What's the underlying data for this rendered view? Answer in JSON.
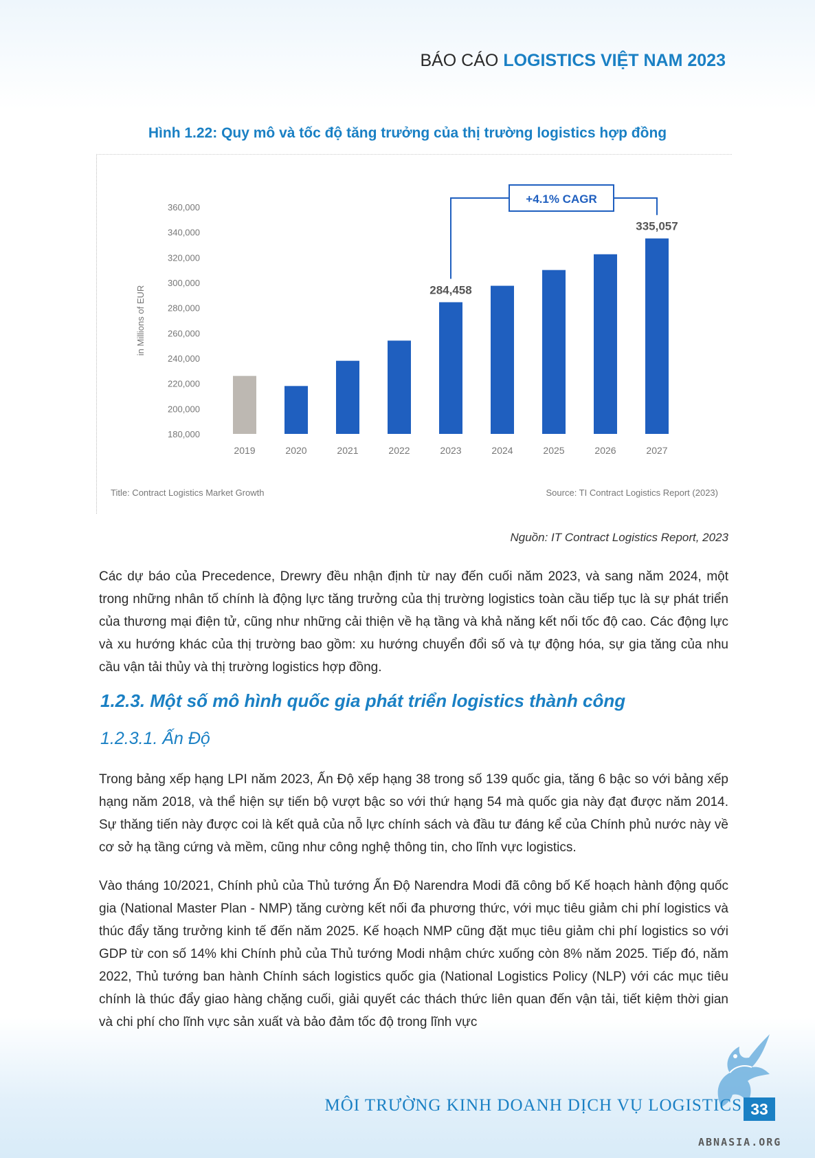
{
  "header": {
    "prefix": "BÁO CÁO",
    "title": "LOGISTICS VIỆT NAM 2023"
  },
  "figure": {
    "caption": "Hình 1.22: Quy mô và tốc độ tăng trưởng của thị trường logistics hợp đồng",
    "source_note": "Nguồn: IT Contract Logistics Report, 2023"
  },
  "chart_data": {
    "type": "bar",
    "categories": [
      "2019",
      "2020",
      "2021",
      "2022",
      "2023",
      "2024",
      "2025",
      "2026",
      "2027"
    ],
    "values": [
      226000,
      218000,
      238000,
      254000,
      284458,
      297500,
      310000,
      322500,
      335057
    ],
    "bar_colors": [
      "#bdb8b2",
      "#1f5fbf",
      "#1f5fbf",
      "#1f5fbf",
      "#1f5fbf",
      "#1f5fbf",
      "#1f5fbf",
      "#1f5fbf",
      "#1f5fbf"
    ],
    "ylabel": "in Millions of EUR",
    "ylim": [
      180000,
      360000
    ],
    "yticks": [
      "180,000",
      "200,000",
      "220,000",
      "240,000",
      "260,000",
      "280,000",
      "300,000",
      "320,000",
      "340,000",
      "360,000"
    ],
    "data_labels": [
      {
        "category": "2023",
        "text": "284,458"
      },
      {
        "category": "2027",
        "text": "335,057"
      }
    ],
    "annotation": "+4.1% CAGR",
    "footer_title": "Title: Contract Logistics Market Growth",
    "footer_source": "Source: TI Contract Logistics Report (2023)",
    "grid": false
  },
  "paragraphs": {
    "p1": "Các dự báo của Precedence, Drewry đều nhận định từ nay đến cuối năm 2023, và sang năm 2024, một trong những nhân tố chính là động lực tăng trưởng của thị trường logistics toàn cầu tiếp tục là sự phát triển của thương mại điện tử, cũng như những cải thiện về hạ tầng và khả năng kết nối tốc độ cao. Các động lực và xu hướng khác của thị trường bao gồm: xu hướng chuyển đổi số và tự động hóa, sự gia tăng của nhu cầu vận tải thủy và thị trường logistics hợp đồng.",
    "h2": "1.2.3. Một số mô hình quốc gia phát triển logistics thành công",
    "h3": "1.2.3.1. Ấn Độ",
    "p2": "Trong bảng xếp hạng LPI năm 2023, Ấn Độ xếp hạng 38 trong số 139 quốc gia, tăng 6 bậc so với bảng xếp hạng năm 2018, và thể hiện sự tiến bộ vượt bậc so với thứ hạng 54 mà quốc gia này đạt được năm 2014. Sự thăng tiến này được coi là kết quả của nỗ lực chính sách và đầu tư đáng kể của Chính phủ nước này về cơ sở hạ tầng cứng và mềm, cũng như công nghệ thông tin, cho lĩnh vực logistics.",
    "p3": "Vào tháng 10/2021, Chính phủ của Thủ tướng Ấn Độ Narendra Modi đã công bố Kế hoạch hành động quốc gia (National Master Plan - NMP) tăng cường kết nối đa phương thức, với mục tiêu giảm chi phí logistics và thúc đẩy tăng trưởng kinh tế đến năm 2025. Kế hoạch NMP cũng đặt mục tiêu giảm chi phí logistics so với GDP từ con số 14% khi Chính phủ của Thủ tướng Modi nhậm chức xuống còn 8% năm 2025. Tiếp đó, năm 2022, Thủ tướng ban hành Chính sách logistics quốc gia (National Logistics Policy (NLP) với các mục tiêu chính là thúc đẩy giao hàng chặng cuối, giải quyết các thách thức liên quan đến vận tải, tiết kiệm thời gian và chi phí cho lĩnh vực sản xuất và bảo đảm tốc độ trong lĩnh vực"
  },
  "footer": {
    "text": "MÔI TRƯỜNG KINH DOANH DỊCH VỤ LOGISTICS",
    "page_number": "33",
    "watermark": "ABNASIA.ORG"
  },
  "colors": {
    "accent": "#1a80c4",
    "bar": "#1f5fbf",
    "bar_history": "#bdb8b2"
  }
}
